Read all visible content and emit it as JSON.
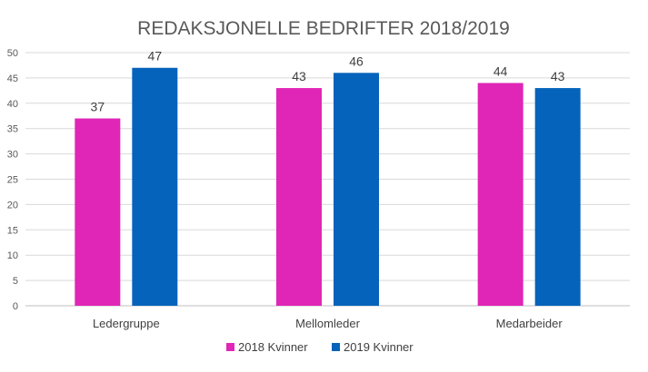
{
  "chart_data": {
    "type": "bar",
    "title": "REDAKSJONELLE BEDRIFTER 2018/2019",
    "categories": [
      "Ledergruppe",
      "Mellomleder",
      "Medarbeider"
    ],
    "series": [
      {
        "name": "2018 Kvinner",
        "values": [
          37,
          43,
          44
        ],
        "color": "#E026B6"
      },
      {
        "name": "2019 Kvinner",
        "values": [
          47,
          46,
          43
        ],
        "color": "#0563BB"
      }
    ],
    "ylim": [
      0,
      50
    ],
    "yticks": [
      0,
      5,
      10,
      15,
      20,
      25,
      30,
      35,
      40,
      45,
      50
    ],
    "grid": true,
    "legend_position": "bottom",
    "data_labels": true
  }
}
